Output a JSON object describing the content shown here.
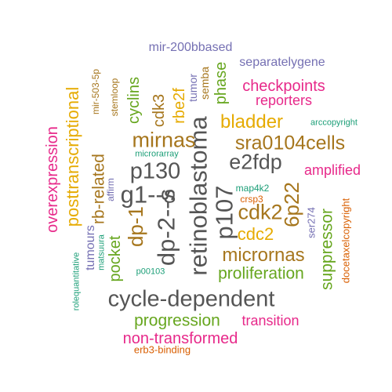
{
  "words": {
    "retinoblastoma": "retinoblastoma",
    "cycle_dependent": "cycle-dependent",
    "p107": "p107",
    "dp_2_s": "dp-2--s",
    "g1_s": "g1--s",
    "p130": "p130",
    "e2fdp": "e2fdp",
    "mirnas": "mirnas",
    "sra0104cells": "sra0104cells",
    "cdk2": "cdk2",
    "micrornas": "micrornas",
    "bladder": "bladder",
    "dp_1": "dp-1",
    "6p22": "6p22",
    "posttranscriptional": "posttranscriptional",
    "rb_related": "rb-related",
    "proliferation": "proliferation",
    "progression": "progression",
    "non_transformed": "non-transformed",
    "cdc2": "cdc2",
    "suppressor": "suppressor",
    "overexpression": "overexpression",
    "phase": "phase",
    "checkpoints": "checkpoints",
    "reporters": "reporters",
    "cyclins": "cyclins",
    "rbe2f": "rbe2f",
    "cdk3": "cdk3",
    "pocket": "pocket",
    "transition": "transition",
    "amplified": "amplified",
    "tumours": "tumours",
    "separatelygene": "separatelygene",
    "mir_200bbased": "mir-200bbased",
    "tumor": "tumor",
    "docetaxelcopyright": "docetaxelcopyright",
    "affirm": "affirm",
    "semba": "semba",
    "stemloop": "stemloop",
    "mir_503_5p": "mir-503-5p",
    "ser274": "ser274",
    "erb3_binding": "erb3-binding",
    "microrarray": "microrarray",
    "map4k2": "map4k2",
    "crsp3": "crsp3",
    "arccopyright": "arccopyright",
    "matsuura": "matsuura",
    "rolequantitative": "rolequantitative",
    "p00103": "p00103"
  },
  "colors": {
    "gray": "#555555",
    "brown": "#a6761d",
    "mustard": "#e6ab02",
    "green": "#66a61e",
    "magenta": "#e7298a",
    "purple": "#7570b3",
    "orange": "#d95f02",
    "teal": "#1b9e77"
  }
}
